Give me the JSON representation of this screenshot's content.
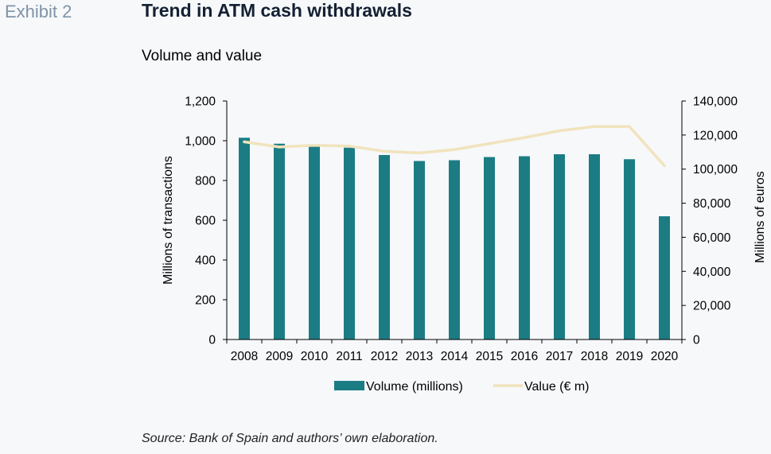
{
  "header": {
    "exhibit": "Exhibit 2",
    "title": "Trend in ATM cash withdrawals",
    "subtitle": "Volume and value"
  },
  "footer": {
    "source": "Source: Bank of Spain and authors’ own elaboration."
  },
  "colors": {
    "bar": "#1c7c84",
    "line": "#f1e3bd",
    "axis": "#000000",
    "background": "#f6f8fa"
  },
  "chart_data": {
    "type": "bar",
    "categories": [
      "2008",
      "2009",
      "2010",
      "2011",
      "2012",
      "2013",
      "2014",
      "2015",
      "2016",
      "2017",
      "2018",
      "2019",
      "2020"
    ],
    "series": [
      {
        "name": "Volume (millions)",
        "type": "bar",
        "axis": "left",
        "values": [
          1015,
          985,
          980,
          965,
          928,
          898,
          902,
          918,
          922,
          932,
          932,
          907,
          620
        ]
      },
      {
        "name": "Value (€ m)",
        "type": "line",
        "axis": "right",
        "values": [
          116000,
          113000,
          114000,
          113500,
          110500,
          109500,
          111500,
          115000,
          118500,
          122500,
          125000,
          125000,
          102000
        ]
      }
    ],
    "ylabel": "Millions of transactions",
    "ylabel_right": "Millions of euros",
    "ylim": [
      0,
      1200
    ],
    "ylim_right": [
      0,
      140000
    ],
    "yticks": [
      "0",
      "200",
      "400",
      "600",
      "800",
      "1,000",
      "1,200"
    ],
    "yticks_right": [
      "0",
      "20,000",
      "40,000",
      "60,000",
      "80,000",
      "100,000",
      "120,000",
      "140,000"
    ],
    "grid": false,
    "legend_position": "bottom"
  }
}
